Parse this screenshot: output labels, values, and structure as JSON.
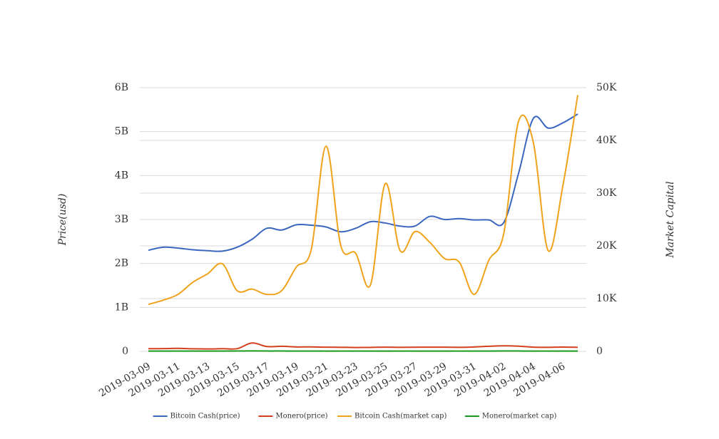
{
  "chart_data": {
    "type": "line",
    "categories": [
      "2019-03-09",
      null,
      "2019-03-11",
      null,
      "2019-03-13",
      null,
      "2019-03-15",
      null,
      "2019-03-17",
      null,
      "2019-03-19",
      null,
      "2019-03-21",
      null,
      "2019-03-23",
      null,
      "2019-03-25",
      null,
      "2019-03-27",
      null,
      "2019-03-29",
      null,
      "2019-03-31",
      null,
      "2019-04-02",
      null,
      "2019-04-04",
      null,
      "2019-04-06",
      null
    ],
    "ylabel": "Price(usd)",
    "y2label": "Market Capital",
    "ylim": [
      0,
      6000000000
    ],
    "yticks": [
      0,
      {
        "value": 1000000000,
        "label": "1B"
      },
      {
        "value": 2000000000,
        "label": "2B"
      },
      {
        "value": 3000000000,
        "label": "3B"
      },
      {
        "value": 4000000000,
        "label": "4B"
      },
      {
        "value": 5000000000,
        "label": "5B"
      },
      {
        "value": 6000000000,
        "label": "6B"
      }
    ],
    "y2lim": [
      0,
      50000
    ],
    "y2ticks": [
      0,
      {
        "value": 10000,
        "label": "10K"
      },
      {
        "value": 20000,
        "label": "20K"
      },
      {
        "value": 30000,
        "label": "30K"
      },
      {
        "value": 40000,
        "label": "40K"
      },
      {
        "value": 50000,
        "label": "50K"
      }
    ],
    "grid": true,
    "legend": "bottom",
    "series": [
      {
        "name": "Bitcoin Cash(price)",
        "color": "#3a66c0",
        "values": [
          2300000000,
          2370000000,
          2350000000,
          2310000000,
          2290000000,
          2280000000,
          2370000000,
          2550000000,
          2800000000,
          2760000000,
          2880000000,
          2870000000,
          2830000000,
          2720000000,
          2800000000,
          2950000000,
          2920000000,
          2850000000,
          2850000000,
          3070000000,
          3000000000,
          3020000000,
          2990000000,
          2990000000,
          2930000000,
          4050000000,
          5300000000,
          5080000000,
          5200000000,
          5400000000
        ]
      },
      {
        "name": "Monero(price)",
        "color": "#d4401e",
        "values": [
          60000000,
          62000000,
          68000000,
          58000000,
          55000000,
          60000000,
          62000000,
          190000000,
          110000000,
          115000000,
          100000000,
          102000000,
          95000000,
          92000000,
          88000000,
          90000000,
          95000000,
          92000000,
          94000000,
          96000000,
          95000000,
          92000000,
          100000000,
          115000000,
          125000000,
          118000000,
          95000000,
          92000000,
          98000000,
          92000000
        ]
      },
      {
        "name": "Bitcoin Cash(market cap)",
        "color": "#f0a21b",
        "axis": "y2",
        "values": [
          8900,
          9700,
          10800,
          13100,
          14700,
          16600,
          11500,
          11800,
          10800,
          11500,
          16000,
          19300,
          38900,
          20000,
          18600,
          12600,
          31800,
          19100,
          22700,
          20700,
          17600,
          16900,
          10800,
          17300,
          22300,
          43600,
          39600,
          19100,
          31500,
          48600
        ]
      },
      {
        "name": "Monero(market cap)",
        "color": "#1a9a1a",
        "axis": "y2",
        "values": [
          50,
          50,
          50,
          50,
          50,
          50,
          60,
          80,
          60,
          60,
          50,
          50,
          50,
          50,
          50,
          50,
          50,
          50,
          50,
          50,
          50,
          50,
          50,
          55,
          60,
          60,
          50,
          50,
          50,
          50
        ]
      }
    ]
  }
}
